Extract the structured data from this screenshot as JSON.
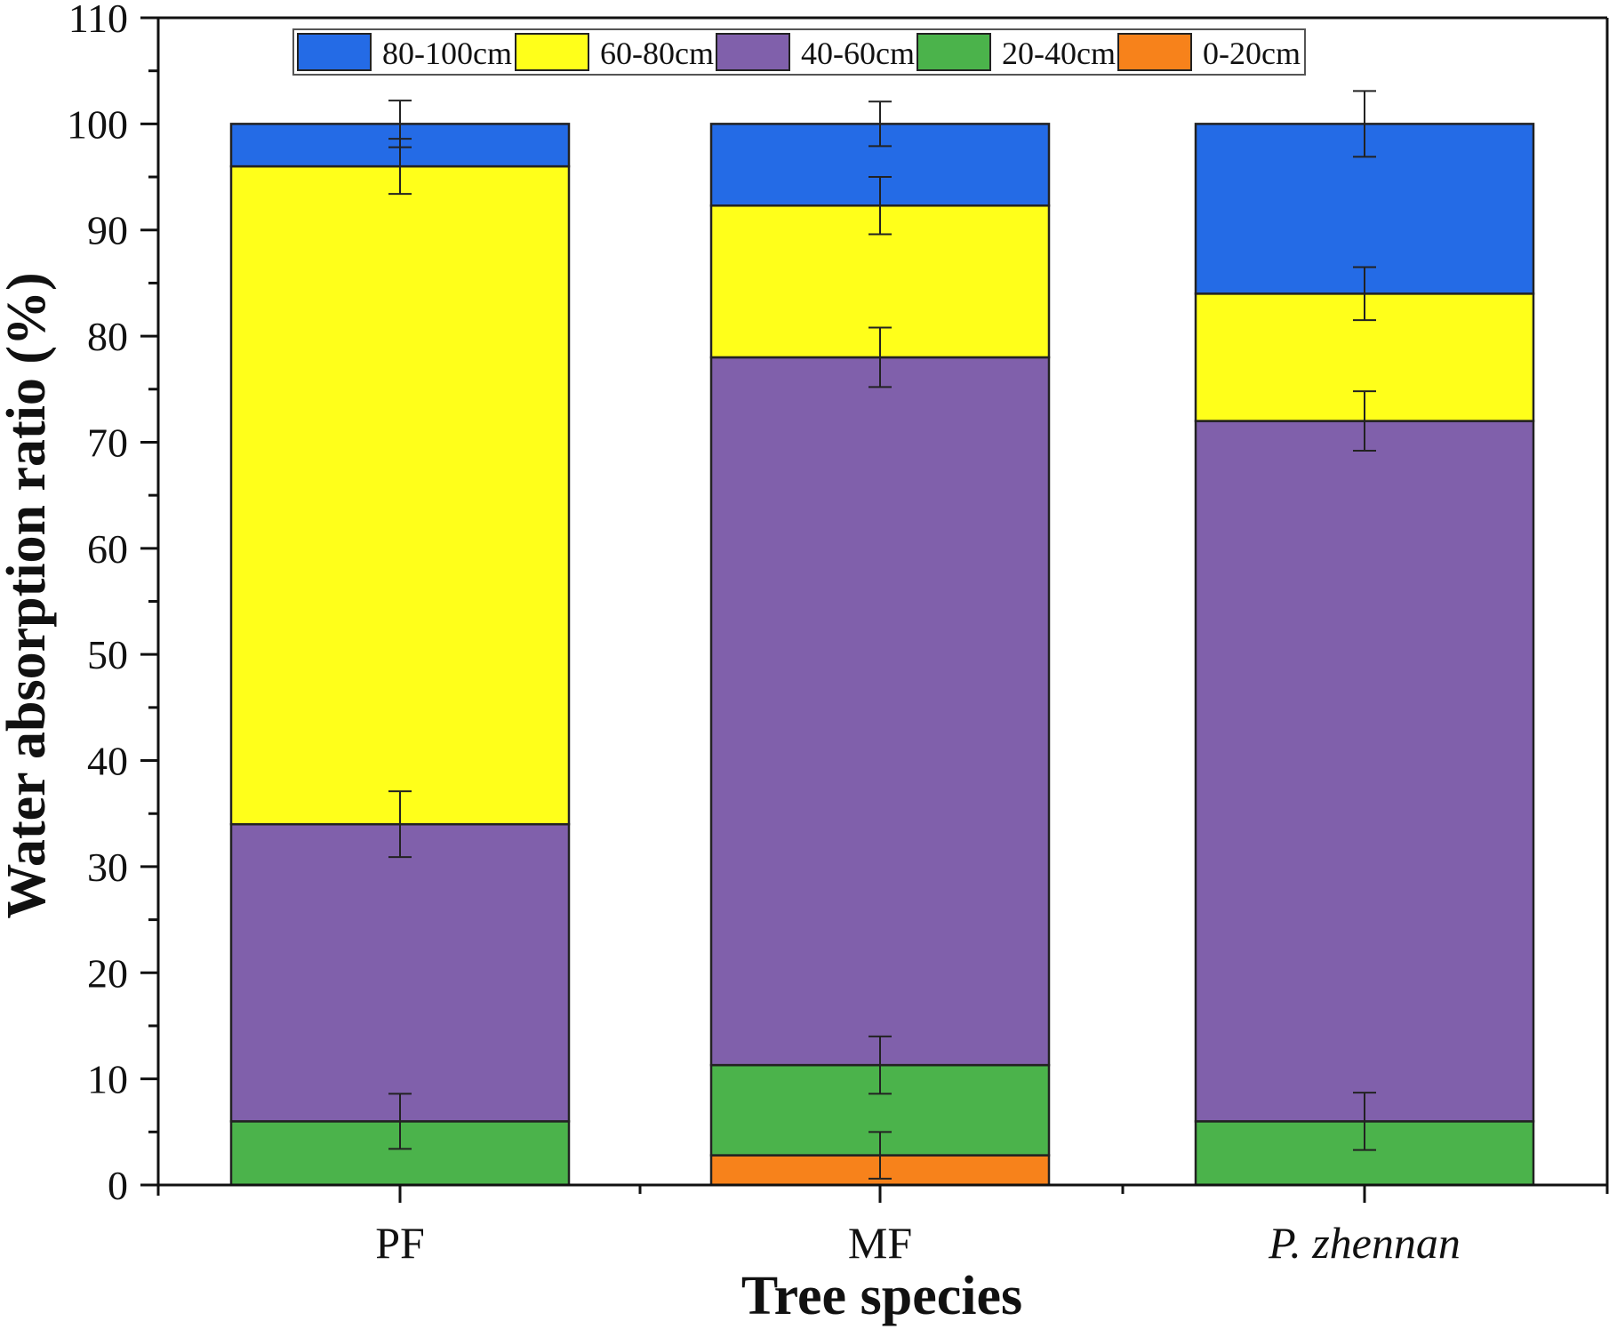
{
  "chart_data": {
    "type": "bar",
    "stacked": true,
    "xlabel": "Tree species",
    "ylabel": "Water absorption ratio (%)",
    "ylim": [
      0,
      110
    ],
    "yticks": [
      0,
      10,
      20,
      30,
      40,
      50,
      60,
      70,
      80,
      90,
      100,
      110
    ],
    "categories": [
      "PF",
      "MF",
      "P. zhennan"
    ],
    "category_italic": [
      false,
      false,
      true
    ],
    "grid": false,
    "legend_position": "top",
    "series": [
      {
        "name": "0-20cm",
        "color": "#f7821b",
        "values": [
          0,
          2.8,
          0
        ],
        "errors": [
          0,
          2.2,
          0
        ]
      },
      {
        "name": "20-40cm",
        "color": "#4bb34b",
        "values": [
          6,
          8.5,
          6
        ],
        "errors": [
          2.6,
          2.7,
          2.7
        ]
      },
      {
        "name": "40-60cm",
        "color": "#8060ab",
        "values": [
          28,
          66.7,
          66
        ],
        "errors": [
          3.1,
          2.8,
          2.8
        ]
      },
      {
        "name": "60-80cm",
        "color": "#ffff1a",
        "values": [
          62,
          14.3,
          12
        ],
        "errors": [
          2.6,
          2.7,
          2.5
        ]
      },
      {
        "name": "80-100cm",
        "color": "#246be6",
        "values": [
          4,
          7.7,
          16
        ],
        "errors": [
          2.2,
          2.1,
          3.1
        ]
      }
    ],
    "legend_order": [
      "80-100cm",
      "60-80cm",
      "40-60cm",
      "20-40cm",
      "0-20cm"
    ]
  }
}
